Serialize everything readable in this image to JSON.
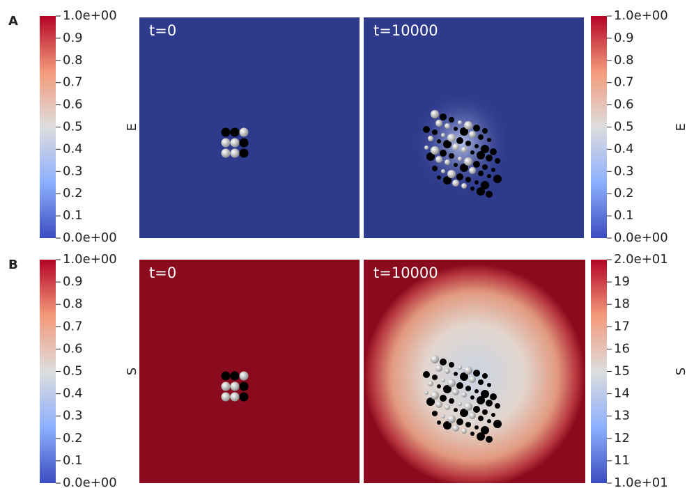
{
  "panels": [
    {
      "label": "A",
      "frames": [
        {
          "time": "t=0"
        },
        {
          "time": "t=10000"
        }
      ],
      "colorbars": [
        {
          "title": "E",
          "lim": [
            0,
            1
          ],
          "ticks": [
            {
              "value": 0,
              "label": "0.0e+00"
            },
            0.1,
            0.2,
            0.3,
            0.4,
            0.5,
            0.6,
            0.7,
            0.8,
            0.9,
            {
              "value": 1,
              "label": "1.0e+00"
            }
          ]
        },
        {
          "title": "E",
          "lim": [
            0,
            1
          ],
          "ticks": [
            {
              "value": 0,
              "label": "0.0e+00"
            },
            0.1,
            0.2,
            0.3,
            0.4,
            0.5,
            0.6,
            0.7,
            0.8,
            0.9,
            {
              "value": 1,
              "label": "1.0e+00"
            }
          ]
        }
      ]
    },
    {
      "label": "B",
      "frames": [
        {
          "time": "t=0"
        },
        {
          "time": "t=10000"
        }
      ],
      "colorbars": [
        {
          "title": "S",
          "lim": [
            0,
            1
          ],
          "ticks": [
            {
              "value": 0,
              "label": "0.0e+00"
            },
            0.1,
            0.2,
            0.3,
            0.4,
            0.5,
            0.6,
            0.7,
            0.8,
            0.9,
            {
              "value": 1,
              "label": "1.0e+00"
            }
          ]
        },
        {
          "title": "S",
          "lim": [
            10,
            20
          ],
          "ticks": [
            {
              "value": 10,
              "label": "1.0e+01"
            },
            11,
            12,
            13,
            14,
            15,
            16,
            17,
            18,
            19,
            {
              "value": 20,
              "label": "2.0e+01"
            }
          ]
        }
      ]
    }
  ]
}
